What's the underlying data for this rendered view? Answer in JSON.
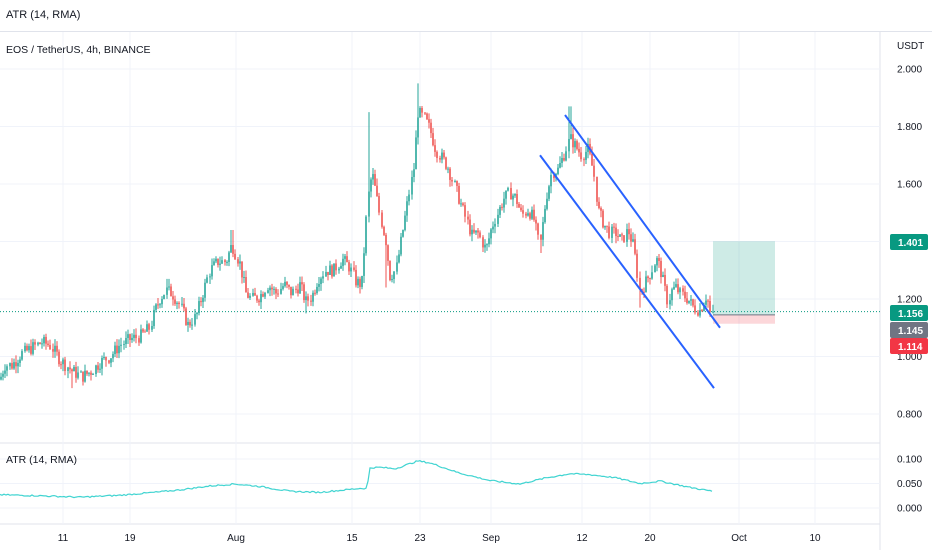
{
  "top_indicator_label": "ATR (14, RMA)",
  "chart_data": [
    {
      "type": "candlestick",
      "title": "EOS / TetherUS, 4h, BINANCE",
      "currency": "USDT",
      "ylim": [
        0.72,
        2.06
      ],
      "y_ticks": [
        "0.800",
        "1.000",
        "1.200",
        "1.400",
        "1.600",
        "1.800",
        "2.000"
      ],
      "x_ticks": [
        "11",
        "19",
        "Aug",
        "15",
        "23",
        "Sep",
        "12",
        "20",
        "Oct",
        "10"
      ],
      "price_tags": [
        {
          "label": "1.401",
          "value": 1.401,
          "color": "#089981"
        },
        {
          "label": "1.156",
          "value": 1.156,
          "color": "#089981"
        },
        {
          "label": "1.145",
          "value": 1.145,
          "color": "#707583"
        },
        {
          "label": "1.114",
          "value": 1.114,
          "color": "#f23645"
        }
      ],
      "current_price": 1.156,
      "position": {
        "entry": 1.145,
        "target": 1.401,
        "stop": 1.114
      },
      "trend_channel": {
        "upper": [
          [
            1.84,
            "2021-09-11"
          ],
          [
            1.1,
            "2021-09-28"
          ]
        ],
        "lower": [
          [
            1.7,
            "2021-09-08"
          ],
          [
            0.89,
            "2021-09-28"
          ]
        ]
      },
      "colors": {
        "up": "#26a69a",
        "down": "#ef5350",
        "channel": "#2962ff",
        "current_line": "#089981"
      },
      "path": [
        [
          0,
          0.92
        ],
        [
          5,
          0.97
        ],
        [
          12,
          0.97
        ],
        [
          22,
          1.01
        ],
        [
          32,
          1.03
        ],
        [
          42,
          1.05
        ],
        [
          50,
          1.04
        ],
        [
          60,
          0.99
        ],
        [
          72,
          0.95
        ],
        [
          82,
          0.93
        ],
        [
          92,
          0.95
        ],
        [
          100,
          0.98
        ],
        [
          110,
          1.0
        ],
        [
          120,
          1.04
        ],
        [
          130,
          1.06
        ],
        [
          140,
          1.07
        ],
        [
          150,
          1.1
        ],
        [
          155,
          1.16
        ],
        [
          160,
          1.2
        ],
        [
          166,
          1.23
        ],
        [
          172,
          1.22
        ],
        [
          180,
          1.18
        ],
        [
          188,
          1.11
        ],
        [
          196,
          1.14
        ],
        [
          203,
          1.22
        ],
        [
          210,
          1.3
        ],
        [
          218,
          1.33
        ],
        [
          226,
          1.33
        ],
        [
          232,
          1.39
        ],
        [
          240,
          1.32
        ],
        [
          246,
          1.22
        ],
        [
          252,
          1.2
        ],
        [
          260,
          1.21
        ],
        [
          268,
          1.25
        ],
        [
          276,
          1.22
        ],
        [
          284,
          1.25
        ],
        [
          292,
          1.22
        ],
        [
          300,
          1.25
        ],
        [
          306,
          1.19
        ],
        [
          312,
          1.21
        ],
        [
          318,
          1.27
        ],
        [
          326,
          1.3
        ],
        [
          334,
          1.3
        ],
        [
          342,
          1.34
        ],
        [
          350,
          1.31
        ],
        [
          356,
          1.26
        ],
        [
          362,
          1.25
        ],
        [
          368,
          1.55
        ],
        [
          372,
          1.64
        ],
        [
          376,
          1.57
        ],
        [
          380,
          1.49
        ],
        [
          386,
          1.4
        ],
        [
          390,
          1.28
        ],
        [
          396,
          1.3
        ],
        [
          402,
          1.42
        ],
        [
          408,
          1.54
        ],
        [
          414,
          1.66
        ],
        [
          418,
          1.85
        ],
        [
          424,
          1.83
        ],
        [
          430,
          1.79
        ],
        [
          436,
          1.72
        ],
        [
          442,
          1.69
        ],
        [
          448,
          1.66
        ],
        [
          454,
          1.6
        ],
        [
          460,
          1.54
        ],
        [
          466,
          1.48
        ],
        [
          472,
          1.42
        ],
        [
          478,
          1.43
        ],
        [
          486,
          1.37
        ],
        [
          492,
          1.45
        ],
        [
          498,
          1.5
        ],
        [
          504,
          1.55
        ],
        [
          510,
          1.57
        ],
        [
          516,
          1.55
        ],
        [
          522,
          1.49
        ],
        [
          528,
          1.51
        ],
        [
          534,
          1.48
        ],
        [
          540,
          1.38
        ],
        [
          546,
          1.55
        ],
        [
          552,
          1.64
        ],
        [
          558,
          1.65
        ],
        [
          564,
          1.7
        ],
        [
          570,
          1.76
        ],
        [
          576,
          1.73
        ],
        [
          582,
          1.7
        ],
        [
          588,
          1.72
        ],
        [
          594,
          1.64
        ],
        [
          598,
          1.51
        ],
        [
          604,
          1.46
        ],
        [
          610,
          1.43
        ],
        [
          616,
          1.43
        ],
        [
          622,
          1.4
        ],
        [
          628,
          1.44
        ],
        [
          634,
          1.38
        ],
        [
          640,
          1.22
        ],
        [
          646,
          1.26
        ],
        [
          652,
          1.3
        ],
        [
          656,
          1.34
        ],
        [
          660,
          1.31
        ],
        [
          664,
          1.25
        ],
        [
          668,
          1.19
        ],
        [
          672,
          1.23
        ],
        [
          676,
          1.24
        ],
        [
          680,
          1.22
        ],
        [
          684,
          1.21
        ],
        [
          688,
          1.2
        ],
        [
          694,
          1.17
        ],
        [
          700,
          1.16
        ],
        [
          706,
          1.21
        ],
        [
          710,
          1.18
        ],
        [
          713,
          1.156
        ]
      ],
      "spikes": [
        [
          368,
          1.85,
          0
        ],
        [
          418,
          1.95,
          0
        ],
        [
          232,
          1.44,
          0
        ],
        [
          168,
          1.27,
          0
        ],
        [
          570,
          1.87,
          0
        ],
        [
          386,
          1.24,
          1
        ],
        [
          306,
          1.15,
          1
        ],
        [
          72,
          0.89,
          1
        ],
        [
          640,
          1.17,
          1
        ],
        [
          540,
          1.36,
          1
        ]
      ]
    },
    {
      "type": "line",
      "title": "ATR (14, RMA)",
      "ylim": [
        0.0,
        0.115
      ],
      "y_ticks": [
        "0.000",
        "0.050",
        "0.100"
      ],
      "colors": {
        "line": "#40d4d1"
      },
      "series": [
        {
          "values": [
            [
              0,
              0.027
            ],
            [
              40,
              0.025
            ],
            [
              80,
              0.022
            ],
            [
              120,
              0.026
            ],
            [
              155,
              0.032
            ],
            [
              180,
              0.037
            ],
            [
              210,
              0.045
            ],
            [
              235,
              0.049
            ],
            [
              260,
              0.044
            ],
            [
              290,
              0.034
            ],
            [
              320,
              0.032
            ],
            [
              360,
              0.04
            ],
            [
              367,
              0.04
            ],
            [
              370,
              0.082
            ],
            [
              380,
              0.083
            ],
            [
              395,
              0.08
            ],
            [
              418,
              0.096
            ],
            [
              430,
              0.092
            ],
            [
              460,
              0.071
            ],
            [
              490,
              0.056
            ],
            [
              520,
              0.049
            ],
            [
              545,
              0.061
            ],
            [
              570,
              0.07
            ],
            [
              590,
              0.068
            ],
            [
              615,
              0.062
            ],
            [
              640,
              0.05
            ],
            [
              660,
              0.055
            ],
            [
              690,
              0.042
            ],
            [
              713,
              0.034
            ]
          ]
        }
      ]
    }
  ]
}
